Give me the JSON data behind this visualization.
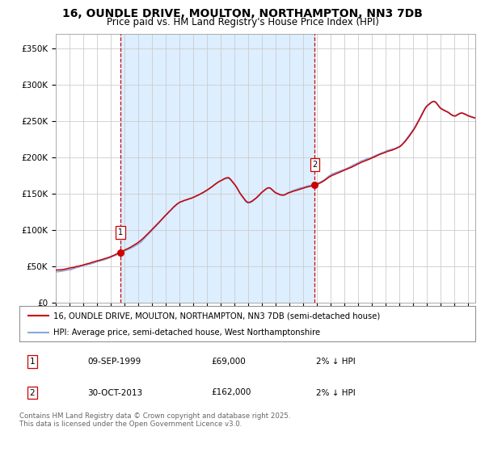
{
  "title": "16, OUNDLE DRIVE, MOULTON, NORTHAMPTON, NN3 7DB",
  "subtitle": "Price paid vs. HM Land Registry's House Price Index (HPI)",
  "ylim": [
    0,
    370000
  ],
  "yticks": [
    0,
    50000,
    100000,
    150000,
    200000,
    250000,
    300000,
    350000
  ],
  "ytick_labels": [
    "£0",
    "£50K",
    "£100K",
    "£150K",
    "£200K",
    "£250K",
    "£300K",
    "£350K"
  ],
  "sale1_date": 1999.69,
  "sale1_price": 69000,
  "sale2_date": 2013.83,
  "sale2_price": 162000,
  "line_color_price": "#cc0000",
  "line_color_hpi": "#88aadd",
  "vline_color": "#cc0000",
  "marker_color": "#cc0000",
  "background_color": "#ffffff",
  "grid_color": "#cccccc",
  "shaded_color": "#ddeeff",
  "legend_label_price": "16, OUNDLE DRIVE, MOULTON, NORTHAMPTON, NN3 7DB (semi-detached house)",
  "legend_label_hpi": "HPI: Average price, semi-detached house, West Northamptonshire",
  "annotation1_date": "09-SEP-1999",
  "annotation1_price": "£69,000",
  "annotation1_hpi": "2% ↓ HPI",
  "annotation2_date": "30-OCT-2013",
  "annotation2_price": "£162,000",
  "annotation2_hpi": "2% ↓ HPI",
  "footer": "Contains HM Land Registry data © Crown copyright and database right 2025.\nThis data is licensed under the Open Government Licence v3.0.",
  "xmin": 1995.0,
  "xmax": 2025.5,
  "title_fontsize": 10,
  "subtitle_fontsize": 8.5,
  "tick_fontsize": 7.5
}
